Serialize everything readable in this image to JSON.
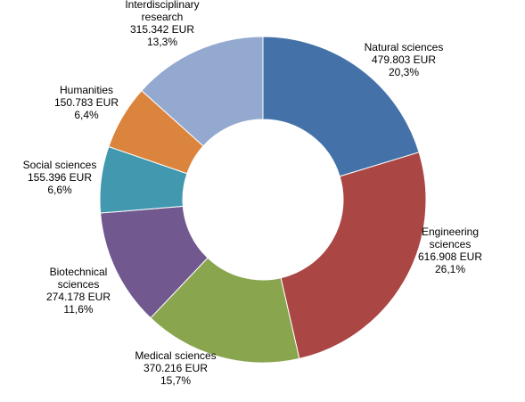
{
  "chart_data": {
    "type": "pie",
    "variant": "donut",
    "unit": "EUR",
    "slices": [
      {
        "name": "Natural sciences",
        "label_lines": [
          "Natural  sciences"
        ],
        "value": 479803,
        "value_text": "479.803 EUR",
        "percent": 20.3,
        "percent_text": "20,3%",
        "color": "#4472a8"
      },
      {
        "name": "Engineering sciences",
        "label_lines": [
          "Engineering",
          "sciences"
        ],
        "value": 616908,
        "value_text": "616.908 EUR",
        "percent": 26.1,
        "percent_text": "26,1%",
        "color": "#aa4744"
      },
      {
        "name": "Medical sciences",
        "label_lines": [
          "Medical sciences"
        ],
        "value": 370216,
        "value_text": "370.216 EUR",
        "percent": 15.7,
        "percent_text": "15,7%",
        "color": "#89a54e"
      },
      {
        "name": "Biotechnical sciences",
        "label_lines": [
          "Biotechnical",
          "sciences"
        ],
        "value": 274178,
        "value_text": "274.178 EUR",
        "percent": 11.6,
        "percent_text": "11,6%",
        "color": "#71588f"
      },
      {
        "name": "Social sciences",
        "label_lines": [
          "Social sciences"
        ],
        "value": 155396,
        "value_text": "155.396 EUR",
        "percent": 6.6,
        "percent_text": "6,6%",
        "color": "#4198af"
      },
      {
        "name": "Humanities",
        "label_lines": [
          "Humanities"
        ],
        "value": 150783,
        "value_text": "150.783 EUR",
        "percent": 6.4,
        "percent_text": "6,4%",
        "color": "#db843d"
      },
      {
        "name": "Interdisciplinary research",
        "label_lines": [
          "Interdisciplinary",
          "research"
        ],
        "value": 315342,
        "value_text": "315.342 EUR",
        "percent": 13.3,
        "percent_text": "13,3%",
        "color": "#93a9cf"
      }
    ]
  }
}
